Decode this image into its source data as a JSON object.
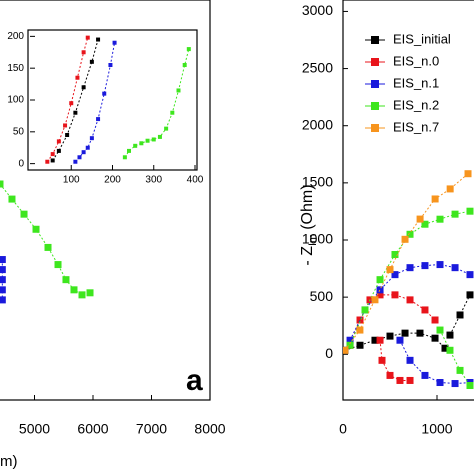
{
  "chart_data": [
    {
      "type": "line",
      "x_label": "m)",
      "panel_label": "a",
      "xlim": [
        0,
        8000
      ],
      "xticks": [
        5000,
        6000,
        7000,
        8000
      ],
      "ylim": [
        -400,
        3100
      ],
      "series": [
        {
          "color": "#3ee61e",
          "x": [
            4410,
            4615,
            4821,
            5026,
            5231,
            5402,
            5538,
            5675,
            5812,
            5949
          ],
          "values": [
            1490,
            1358,
            1226,
            1094,
            935,
            785,
            653,
            564,
            520,
            538
          ]
        },
        {
          "color": "#1a1adc",
          "x": [
            4450,
            4450,
            4450,
            4450,
            4450
          ],
          "values": [
            829,
            741,
            653,
            564,
            476
          ]
        }
      ]
    },
    {
      "type": "line",
      "xlim": [
        0,
        400
      ],
      "xticks": [
        100,
        200,
        300,
        400
      ],
      "ylim": [
        -10,
        210
      ],
      "yticks": [
        0,
        50,
        100,
        150,
        200
      ],
      "series": [
        {
          "color": "#000000",
          "x": [
            55,
            70,
            90,
            110,
            130,
            150,
            165
          ],
          "values": [
            5,
            20,
            45,
            80,
            120,
            160,
            195
          ]
        },
        {
          "color": "#e8141b",
          "x": [
            42,
            55,
            70,
            85,
            100,
            115,
            130,
            140
          ],
          "values": [
            3,
            15,
            35,
            60,
            95,
            135,
            175,
            198
          ]
        },
        {
          "color": "#1a1adc",
          "x": [
            110,
            120,
            130,
            140,
            150,
            165,
            180,
            195,
            205
          ],
          "values": [
            3,
            10,
            18,
            25,
            40,
            70,
            110,
            155,
            190
          ]
        },
        {
          "color": "#3ee61e",
          "x": [
            230,
            240,
            255,
            270,
            285,
            300,
            315,
            330,
            345,
            360,
            375,
            385
          ],
          "values": [
            10,
            20,
            28,
            32,
            36,
            38,
            42,
            55,
            80,
            115,
            155,
            180
          ]
        }
      ]
    },
    {
      "type": "line",
      "y_label": "- Z",
      "y_label_sub": "Im",
      "y_label_unit": "(Ohm)",
      "xlim": [
        0,
        1500
      ],
      "xticks": [
        0,
        1000
      ],
      "ylim": [
        -400,
        3100
      ],
      "yticks": [
        0,
        500,
        1000,
        1500,
        2000,
        2500,
        3000
      ],
      "legend": "upper left",
      "series": [
        {
          "name": "EIS_initial",
          "color": "#000000",
          "x": [
            21,
            181,
            340,
            500,
            660,
            819,
            979,
            1085,
            1110,
            1138,
            1245,
            1351
          ],
          "values": [
            35,
            79,
            123,
            159,
            185,
            185,
            141,
            53,
            null,
            168,
            344,
            520
          ]
        },
        {
          "name": "EIS_n.0",
          "color": "#e8141b",
          "x": [
            75,
            181,
            287,
            394,
            553,
            713,
            872,
            979,
            700,
            394,
            415,
            500,
            606,
            713
          ],
          "values": [
            79,
            300,
            476,
            520,
            520,
            476,
            388,
            300,
            null,
            123,
            -53,
            -185,
            -229,
            -229
          ]
        },
        {
          "name": "EIS_n.1",
          "color": "#1a1adc",
          "x": [
            75,
            234,
            394,
            553,
            713,
            872,
            1032,
            1192,
            1351,
            1000,
            606,
            713,
            872,
            1032,
            1192,
            1351
          ],
          "values": [
            123,
            388,
            564,
            697,
            758,
            776,
            785,
            758,
            697,
            null,
            123,
            -53,
            -185,
            -247,
            -256,
            -247
          ]
        },
        {
          "name": "EIS_n.2",
          "color": "#3ee61e",
          "x": [
            75,
            234,
            394,
            553,
            713,
            872,
            1032,
            1192,
            1351,
            1200,
            1032,
            1138,
            1245,
            1351
          ],
          "values": [
            79,
            388,
            653,
            873,
            1050,
            1138,
            1182,
            1226,
            1252,
            null,
            212,
            35,
            -141,
            -273
          ]
        },
        {
          "name": "EIS_n.7",
          "color": "#f7941d",
          "x": [
            20,
            180,
            340,
            500,
            660,
            820,
            980,
            1140,
            1330
          ],
          "values": [
            35,
            212,
            477,
            741,
            1006,
            1183,
            1359,
            1447,
            1580
          ]
        }
      ]
    }
  ]
}
